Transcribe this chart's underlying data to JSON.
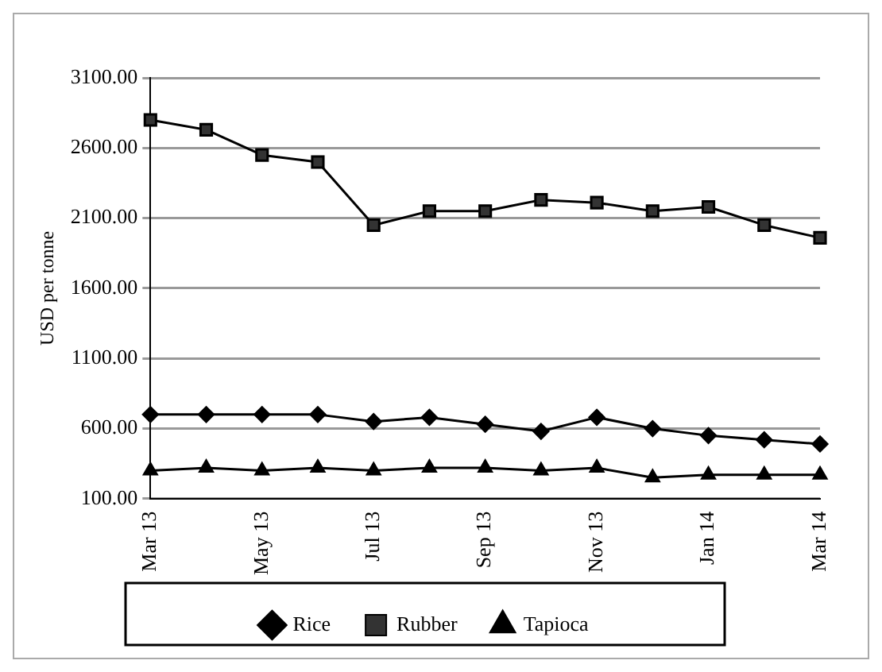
{
  "chart_data": {
    "type": "line",
    "ylabel": "USD per tonne",
    "categories": [
      "Mar 13",
      null,
      "May 13",
      null,
      "Jul 13",
      null,
      "Sep 13",
      null,
      "Nov 13",
      null,
      "Jan 14",
      null,
      "Mar 14"
    ],
    "series": [
      {
        "name": "Rice",
        "color": "#000000",
        "marker": "diamond",
        "values": [
          700,
          700,
          700,
          700,
          650,
          680,
          630,
          580,
          680,
          600,
          550,
          520,
          490
        ]
      },
      {
        "name": "Rubber",
        "color": "#000000",
        "marker": "square",
        "values": [
          2800,
          2730,
          2550,
          2500,
          2050,
          2150,
          2150,
          2230,
          2210,
          2150,
          2180,
          2050,
          1960
        ]
      },
      {
        "name": "Tapioca",
        "color": "#000000",
        "marker": "triangle",
        "values": [
          300,
          320,
          300,
          320,
          300,
          320,
          320,
          300,
          320,
          250,
          270,
          270,
          270
        ]
      }
    ],
    "ylim": [
      100,
      3100
    ],
    "yticks": [
      {
        "value": 100,
        "label": "100.00"
      },
      {
        "value": 600,
        "label": "600.00"
      },
      {
        "value": 1100,
        "label": "1100.00"
      },
      {
        "value": 1600,
        "label": "1600.00"
      },
      {
        "value": 2100,
        "label": "2100.00"
      },
      {
        "value": 2600,
        "label": "2600.00"
      },
      {
        "value": 3100,
        "label": "3100.00"
      }
    ],
    "grid": "y",
    "legend": "bottom",
    "line_style": "solid"
  }
}
